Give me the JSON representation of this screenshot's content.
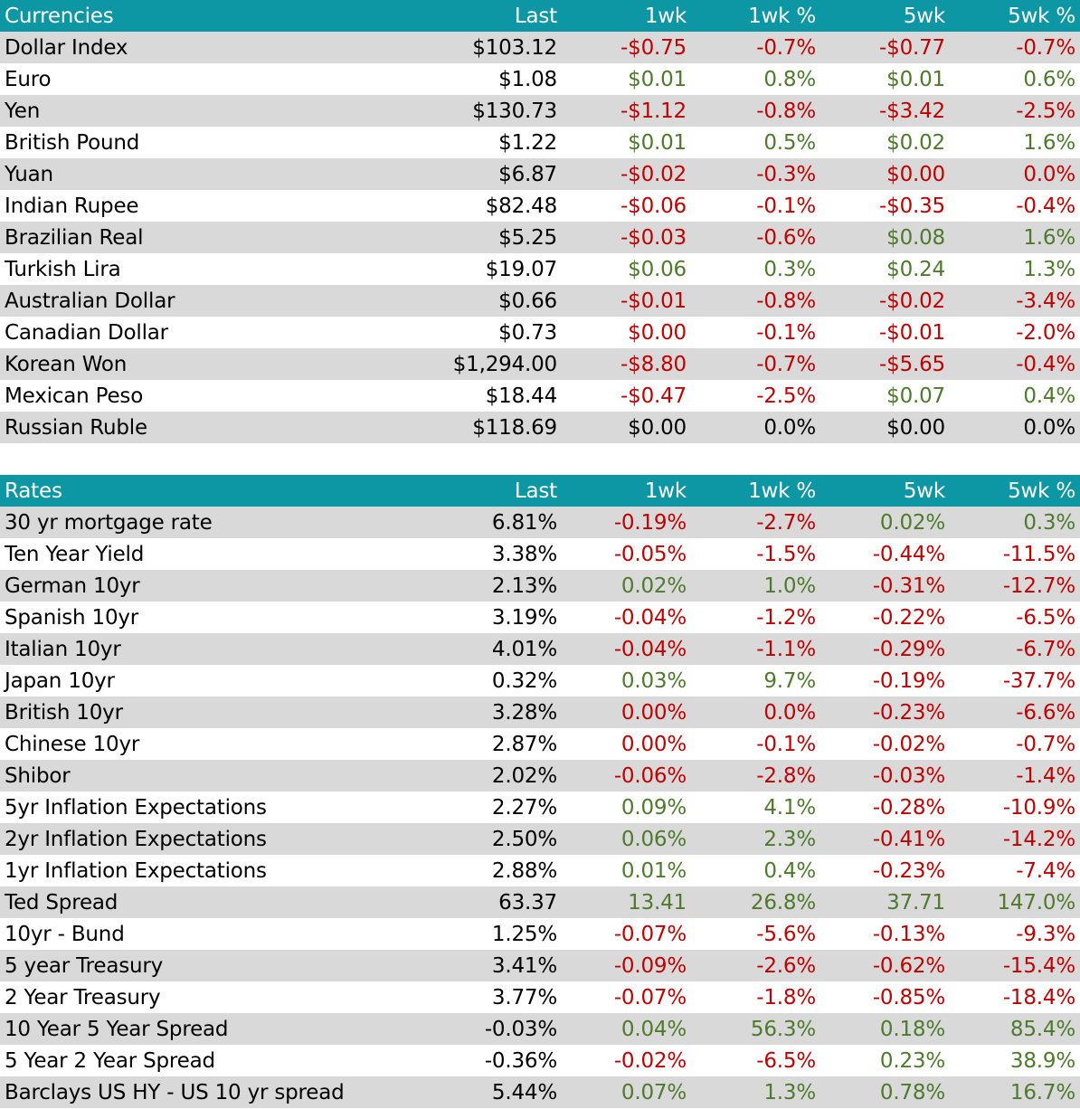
{
  "colors": {
    "header_bg": "#0d96a3",
    "stripe_bg": "#d9d9d9",
    "positive": "#4e7a2c",
    "negative": "#c00000",
    "neutral": "#000000"
  },
  "currencies": {
    "headers": [
      "Currencies",
      "Last",
      "1wk",
      "1wk %",
      "5wk",
      "5wk %"
    ],
    "rows": [
      {
        "name": "Dollar Index",
        "last": "$103.12",
        "wk1": "-$0.75",
        "wk1_pct": "-0.7%",
        "wk5": "-$0.77",
        "wk5_pct": "-0.7%",
        "tone": [
          "neg",
          "neg",
          "neg",
          "neg"
        ]
      },
      {
        "name": "Euro",
        "last": "$1.08",
        "wk1": "$0.01",
        "wk1_pct": "0.8%",
        "wk5": "$0.01",
        "wk5_pct": "0.6%",
        "tone": [
          "pos",
          "pos",
          "pos",
          "pos"
        ]
      },
      {
        "name": "Yen",
        "last": "$130.73",
        "wk1": "-$1.12",
        "wk1_pct": "-0.8%",
        "wk5": "-$3.42",
        "wk5_pct": "-2.5%",
        "tone": [
          "neg",
          "neg",
          "neg",
          "neg"
        ]
      },
      {
        "name": "British Pound",
        "last": "$1.22",
        "wk1": "$0.01",
        "wk1_pct": "0.5%",
        "wk5": "$0.02",
        "wk5_pct": "1.6%",
        "tone": [
          "pos",
          "pos",
          "pos",
          "pos"
        ]
      },
      {
        "name": "Yuan",
        "last": "$6.87",
        "wk1": "-$0.02",
        "wk1_pct": "-0.3%",
        "wk5": "$0.00",
        "wk5_pct": "0.0%",
        "tone": [
          "neg",
          "neg",
          "neg",
          "neg"
        ]
      },
      {
        "name": "Indian Rupee",
        "last": "$82.48",
        "wk1": "-$0.06",
        "wk1_pct": "-0.1%",
        "wk5": "-$0.35",
        "wk5_pct": "-0.4%",
        "tone": [
          "neg",
          "neg",
          "neg",
          "neg"
        ]
      },
      {
        "name": "Brazilian Real",
        "last": "$5.25",
        "wk1": "-$0.03",
        "wk1_pct": "-0.6%",
        "wk5": "$0.08",
        "wk5_pct": "1.6%",
        "tone": [
          "neg",
          "neg",
          "pos",
          "pos"
        ]
      },
      {
        "name": "Turkish Lira",
        "last": "$19.07",
        "wk1": "$0.06",
        "wk1_pct": "0.3%",
        "wk5": "$0.24",
        "wk5_pct": "1.3%",
        "tone": [
          "pos",
          "pos",
          "pos",
          "pos"
        ]
      },
      {
        "name": "Australian Dollar",
        "last": "$0.66",
        "wk1": "-$0.01",
        "wk1_pct": "-0.8%",
        "wk5": "-$0.02",
        "wk5_pct": "-3.4%",
        "tone": [
          "neg",
          "neg",
          "neg",
          "neg"
        ]
      },
      {
        "name": "Canadian Dollar",
        "last": "$0.73",
        "wk1": "$0.00",
        "wk1_pct": "-0.1%",
        "wk5": "-$0.01",
        "wk5_pct": "-2.0%",
        "tone": [
          "neg",
          "neg",
          "neg",
          "neg"
        ]
      },
      {
        "name": "Korean Won",
        "last": "$1,294.00",
        "wk1": "-$8.80",
        "wk1_pct": "-0.7%",
        "wk5": "-$5.65",
        "wk5_pct": "-0.4%",
        "tone": [
          "neg",
          "neg",
          "neg",
          "neg"
        ]
      },
      {
        "name": "Mexican Peso",
        "last": "$18.44",
        "wk1": "-$0.47",
        "wk1_pct": "-2.5%",
        "wk5": "$0.07",
        "wk5_pct": "0.4%",
        "tone": [
          "neg",
          "neg",
          "pos",
          "pos"
        ]
      },
      {
        "name": "Russian Ruble",
        "last": "$118.69",
        "wk1": "$0.00",
        "wk1_pct": "0.0%",
        "wk5": "$0.00",
        "wk5_pct": "0.0%",
        "tone": [
          "neu",
          "neu",
          "neu",
          "neu"
        ]
      }
    ]
  },
  "rates": {
    "headers": [
      "Rates",
      "Last",
      "1wk",
      "1wk %",
      "5wk",
      "5wk %"
    ],
    "rows": [
      {
        "name": "30 yr mortgage rate",
        "last": "6.81%",
        "wk1": "-0.19%",
        "wk1_pct": "-2.7%",
        "wk5": "0.02%",
        "wk5_pct": "0.3%",
        "tone": [
          "neg",
          "neg",
          "pos",
          "pos"
        ]
      },
      {
        "name": "Ten Year Yield",
        "last": "3.38%",
        "wk1": "-0.05%",
        "wk1_pct": "-1.5%",
        "wk5": "-0.44%",
        "wk5_pct": "-11.5%",
        "tone": [
          "neg",
          "neg",
          "neg",
          "neg"
        ]
      },
      {
        "name": "German 10yr",
        "last": "2.13%",
        "wk1": "0.02%",
        "wk1_pct": "1.0%",
        "wk5": "-0.31%",
        "wk5_pct": "-12.7%",
        "tone": [
          "pos",
          "pos",
          "neg",
          "neg"
        ]
      },
      {
        "name": "Spanish 10yr",
        "last": "3.19%",
        "wk1": "-0.04%",
        "wk1_pct": "-1.2%",
        "wk5": "-0.22%",
        "wk5_pct": "-6.5%",
        "tone": [
          "neg",
          "neg",
          "neg",
          "neg"
        ]
      },
      {
        "name": "Italian 10yr",
        "last": "4.01%",
        "wk1": "-0.04%",
        "wk1_pct": "-1.1%",
        "wk5": "-0.29%",
        "wk5_pct": "-6.7%",
        "tone": [
          "neg",
          "neg",
          "neg",
          "neg"
        ]
      },
      {
        "name": "Japan 10yr",
        "last": "0.32%",
        "wk1": "0.03%",
        "wk1_pct": "9.7%",
        "wk5": "-0.19%",
        "wk5_pct": "-37.7%",
        "tone": [
          "pos",
          "pos",
          "neg",
          "neg"
        ]
      },
      {
        "name": "British 10yr",
        "last": "3.28%",
        "wk1": "0.00%",
        "wk1_pct": "0.0%",
        "wk5": "-0.23%",
        "wk5_pct": "-6.6%",
        "tone": [
          "neg",
          "neg",
          "neg",
          "neg"
        ]
      },
      {
        "name": "Chinese 10yr",
        "last": "2.87%",
        "wk1": "0.00%",
        "wk1_pct": "-0.1%",
        "wk5": "-0.02%",
        "wk5_pct": "-0.7%",
        "tone": [
          "neg",
          "neg",
          "neg",
          "neg"
        ]
      },
      {
        "name": "Shibor",
        "last": "2.02%",
        "wk1": "-0.06%",
        "wk1_pct": "-2.8%",
        "wk5": "-0.03%",
        "wk5_pct": "-1.4%",
        "tone": [
          "neg",
          "neg",
          "neg",
          "neg"
        ]
      },
      {
        "name": "5yr Inflation Expectations",
        "last": "2.27%",
        "wk1": "0.09%",
        "wk1_pct": "4.1%",
        "wk5": "-0.28%",
        "wk5_pct": "-10.9%",
        "tone": [
          "pos",
          "pos",
          "neg",
          "neg"
        ]
      },
      {
        "name": "2yr Inflation Expectations",
        "last": "2.50%",
        "wk1": "0.06%",
        "wk1_pct": "2.3%",
        "wk5": "-0.41%",
        "wk5_pct": "-14.2%",
        "tone": [
          "pos",
          "pos",
          "neg",
          "neg"
        ]
      },
      {
        "name": "1yr Inflation Expectations",
        "last": "2.88%",
        "wk1": "0.01%",
        "wk1_pct": "0.4%",
        "wk5": "-0.23%",
        "wk5_pct": "-7.4%",
        "tone": [
          "pos",
          "pos",
          "neg",
          "neg"
        ]
      },
      {
        "name": "Ted Spread",
        "last": "63.37",
        "wk1": "13.41",
        "wk1_pct": "26.8%",
        "wk5": "37.71",
        "wk5_pct": "147.0%",
        "tone": [
          "pos",
          "pos",
          "pos",
          "pos"
        ]
      },
      {
        "name": "10yr - Bund",
        "last": "1.25%",
        "wk1": "-0.07%",
        "wk1_pct": "-5.6%",
        "wk5": "-0.13%",
        "wk5_pct": "-9.3%",
        "tone": [
          "neg",
          "neg",
          "neg",
          "neg"
        ]
      },
      {
        "name": "5 year Treasury",
        "last": "3.41%",
        "wk1": "-0.09%",
        "wk1_pct": "-2.6%",
        "wk5": "-0.62%",
        "wk5_pct": "-15.4%",
        "tone": [
          "neg",
          "neg",
          "neg",
          "neg"
        ]
      },
      {
        "name": "2 Year Treasury",
        "last": "3.77%",
        "wk1": "-0.07%",
        "wk1_pct": "-1.8%",
        "wk5": "-0.85%",
        "wk5_pct": "-18.4%",
        "tone": [
          "neg",
          "neg",
          "neg",
          "neg"
        ]
      },
      {
        "name": "10 Year 5 Year Spread",
        "last": "-0.03%",
        "wk1": "0.04%",
        "wk1_pct": "56.3%",
        "wk5": "0.18%",
        "wk5_pct": "85.4%",
        "tone": [
          "pos",
          "pos",
          "pos",
          "pos"
        ]
      },
      {
        "name": "5 Year 2 Year Spread",
        "last": "-0.36%",
        "wk1": "-0.02%",
        "wk1_pct": "-6.5%",
        "wk5": "0.23%",
        "wk5_pct": "38.9%",
        "tone": [
          "neg",
          "neg",
          "pos",
          "pos"
        ]
      },
      {
        "name": "Barclays US HY - US 10 yr spread",
        "last": "5.44%",
        "wk1": "0.07%",
        "wk1_pct": "1.3%",
        "wk5": "0.78%",
        "wk5_pct": "16.7%",
        "tone": [
          "pos",
          "pos",
          "pos",
          "pos"
        ]
      }
    ]
  }
}
